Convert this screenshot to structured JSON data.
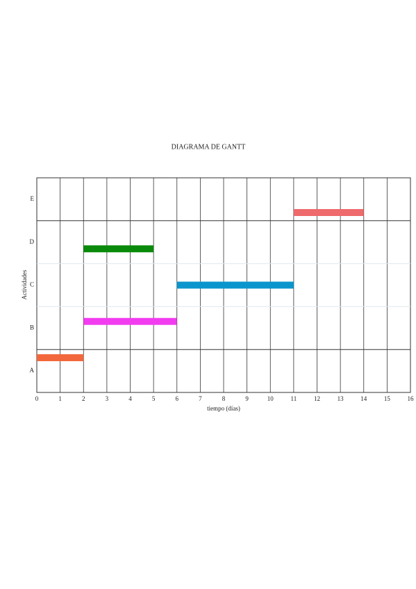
{
  "chart_data": {
    "type": "gantt",
    "title": "DIAGRAMA DE GANTT",
    "x_label": "tiempo (días)",
    "y_label": "Actividades",
    "categories": [
      "A",
      "B",
      "C",
      "D",
      "E"
    ],
    "start": [
      0,
      2,
      6,
      2,
      11
    ],
    "end": [
      2,
      6,
      11,
      5,
      14
    ],
    "colors": [
      "#f2683c",
      "#f23cf0",
      "#0a96cc",
      "#0a8a0a",
      "#ee6a6c"
    ],
    "xlim": [
      0,
      16
    ],
    "xticks": [
      0,
      1,
      2,
      3,
      4,
      5,
      6,
      7,
      8,
      9,
      10,
      11,
      12,
      13,
      14,
      15,
      16
    ],
    "grid": true
  }
}
